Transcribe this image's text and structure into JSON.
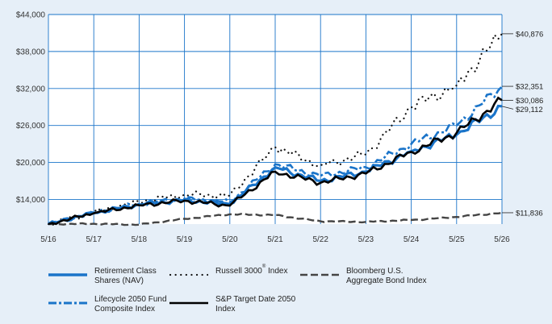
{
  "chart_data": {
    "type": "line",
    "x": [
      "5/16",
      "5/17",
      "5/18",
      "5/19",
      "5/20",
      "5/21",
      "5/22",
      "5/23",
      "5/24",
      "5/25",
      "5/26"
    ],
    "ylim": [
      10000,
      44000
    ],
    "yticks": [
      "$14,000",
      "$20,000",
      "$26,000",
      "$32,000",
      "$38,000",
      "$44,000"
    ],
    "grid": true,
    "legend_position": "bottom",
    "series": [
      {
        "name": "Retirement Class Shares (NAV)",
        "style": "solid",
        "color": "#1a74c9",
        "end_label": "$29,112",
        "values": [
          10000,
          11800,
          13200,
          13900,
          13200,
          19200,
          17000,
          18500,
          21800,
          24500,
          29112
        ]
      },
      {
        "name": "Russell 3000® Index",
        "name_main": "Russell 3000",
        "name_sup": "®",
        "name_tail": " Index",
        "style": "dotted",
        "color": "#111111",
        "end_label": "$40,876",
        "values": [
          10000,
          11900,
          13600,
          14800,
          14600,
          22500,
          19500,
          21300,
          29000,
          32500,
          40876
        ]
      },
      {
        "name": "Bloomberg U.S. Aggregate Bond Index",
        "style": "dashed",
        "color": "#444444",
        "end_label": "$11,836",
        "values": [
          10000,
          10050,
          9900,
          10850,
          11600,
          11450,
          10450,
          10350,
          10650,
          11150,
          11836
        ]
      },
      {
        "name": "Lifecycle 2050 Fund Composite Index",
        "style": "dashdot",
        "color": "#1a74c9",
        "end_label": "$32,351",
        "values": [
          10000,
          11850,
          13300,
          14100,
          13600,
          19700,
          17800,
          19200,
          23000,
          26000,
          32351
        ]
      },
      {
        "name": "S&P Target Date 2050 Index",
        "style": "solid",
        "color": "#000000",
        "end_label": "$30,086",
        "values": [
          10000,
          11750,
          13050,
          13800,
          13000,
          18500,
          16700,
          18200,
          21700,
          24800,
          30086
        ]
      }
    ]
  },
  "legend": {
    "retirement_l1": "Retirement Class",
    "retirement_l2": "Shares (NAV)",
    "russell_main": "Russell 3000",
    "russell_sup": "®",
    "russell_tail": " Index",
    "bloomberg_l1": "Bloomberg U.S.",
    "bloomberg_l2": "Aggregate Bond Index",
    "lifecycle_l1": "Lifecycle 2050 Fund",
    "lifecycle_l2": "Composite Index",
    "sp_l1": "S&P Target Date 2050",
    "sp_l2": "Index"
  }
}
